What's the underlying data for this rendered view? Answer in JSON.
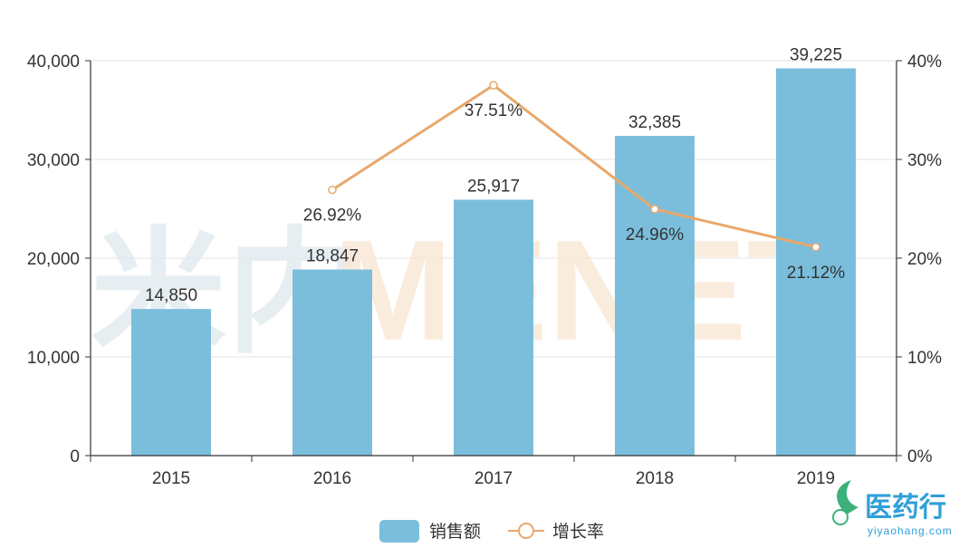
{
  "chart_data": {
    "type": "bar",
    "categories": [
      "2015",
      "2016",
      "2017",
      "2018",
      "2019"
    ],
    "series": [
      {
        "name": "销售额",
        "type": "bar",
        "axis": "left",
        "values": [
          14850,
          18847,
          25917,
          32385,
          39225
        ],
        "labels": [
          "14,850",
          "18,847",
          "25,917",
          "32,385",
          "39,225"
        ],
        "color": "#7bbedc"
      },
      {
        "name": "增长率",
        "type": "line",
        "axis": "right",
        "x": [
          "2016",
          "2017",
          "2018",
          "2019"
        ],
        "values": [
          26.92,
          37.51,
          24.96,
          21.12
        ],
        "labels": [
          "26.92%",
          "37.51%",
          "24.96%",
          "21.12%"
        ],
        "color": "#e8a86a"
      }
    ],
    "y_left": {
      "ylim": [
        0,
        40000
      ],
      "ticks": [
        "0",
        "10,000",
        "20,000",
        "30,000",
        "40,000"
      ]
    },
    "y_right": {
      "ylim": [
        0,
        40
      ],
      "ticks": [
        "0%",
        "10%",
        "20%",
        "30%",
        "40%"
      ]
    },
    "grid": true,
    "legend_position": "bottom-center"
  },
  "watermark": {
    "cn": "米内",
    "en": "MENET"
  },
  "logo": {
    "name": "医药行",
    "url": "yiyaohang.com"
  }
}
